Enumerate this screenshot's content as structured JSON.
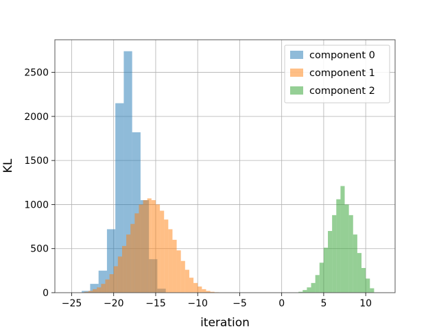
{
  "chart_data": {
    "type": "bar",
    "xlabel": "iteration",
    "ylabel": "KL",
    "xlim": [
      -27,
      13.5
    ],
    "ylim": [
      0,
      2870
    ],
    "grid": true,
    "legend_position": "top-right",
    "xticks": [
      -25,
      -20,
      -15,
      -10,
      -5,
      0,
      5,
      10
    ],
    "xtick_labels": [
      "−25",
      "−20",
      "−15",
      "−10",
      "−5",
      "0",
      "5",
      "10"
    ],
    "yticks": [
      0,
      500,
      1000,
      1500,
      2000,
      2500
    ],
    "ytick_labels": [
      "0",
      "500",
      "1000",
      "1500",
      "2000",
      "2500"
    ],
    "series": [
      {
        "name": "component 0",
        "color": "#1f77b4",
        "bin_edges": [
          -23.8,
          -22.8,
          -21.8,
          -20.8,
          -19.8,
          -18.8,
          -17.8,
          -16.8,
          -15.8,
          -14.8,
          -13.8
        ],
        "counts": [
          20,
          100,
          250,
          720,
          2150,
          2740,
          1820,
          1050,
          380,
          45
        ]
      },
      {
        "name": "component 1",
        "color": "#ff7f0e",
        "bin_edges": [
          -23.5,
          -23.0,
          -22.5,
          -22.0,
          -21.5,
          -21.0,
          -20.5,
          -20.0,
          -19.5,
          -19.0,
          -18.5,
          -18.0,
          -17.5,
          -17.0,
          -16.5,
          -16.0,
          -15.5,
          -15.0,
          -14.5,
          -14.0,
          -13.5,
          -13.0,
          -12.5,
          -12.0,
          -11.5,
          -11.0,
          -10.5,
          -10.0,
          -9.5,
          -9.0,
          -8.5,
          -8.0,
          -7.5
        ],
        "counts": [
          10,
          20,
          40,
          60,
          100,
          150,
          210,
          300,
          410,
          530,
          660,
          780,
          900,
          1000,
          1050,
          1070,
          1050,
          1000,
          930,
          830,
          720,
          600,
          480,
          360,
          260,
          170,
          110,
          70,
          40,
          20,
          10,
          5
        ]
      },
      {
        "name": "component 2",
        "color": "#2ca02c",
        "bin_edges": [
          2.0,
          2.5,
          3.0,
          3.5,
          4.0,
          4.5,
          5.0,
          5.5,
          6.0,
          6.5,
          7.0,
          7.5,
          8.0,
          8.5,
          9.0,
          9.5,
          10.0,
          10.5,
          11.0
        ],
        "counts": [
          10,
          30,
          60,
          110,
          200,
          340,
          510,
          700,
          880,
          1060,
          1210,
          1000,
          880,
          660,
          450,
          280,
          160,
          50
        ]
      }
    ]
  }
}
